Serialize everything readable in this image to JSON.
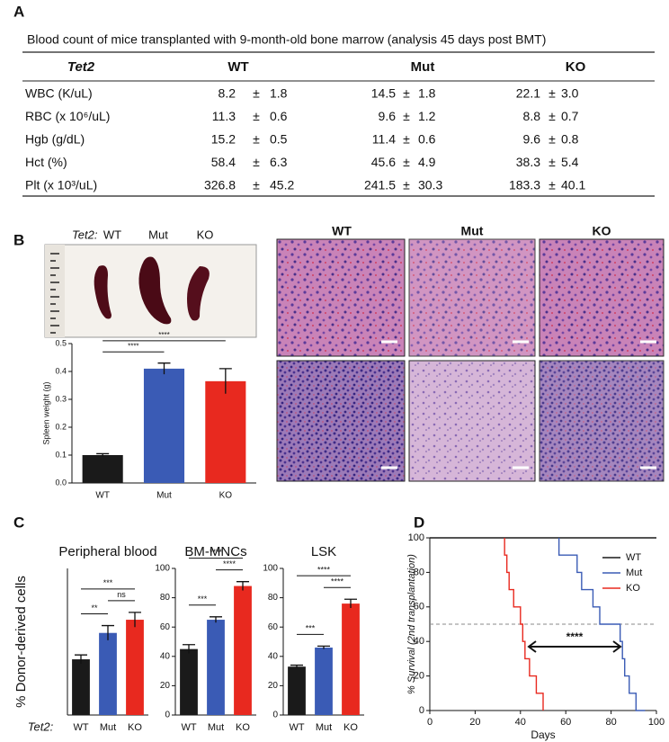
{
  "panel_labels": [
    "A",
    "B",
    "C",
    "D"
  ],
  "table": {
    "title": "Blood count of mice transplanted with 9-month-old bone marrow (analysis 45 days post BMT)",
    "header": [
      "Tet2",
      "WT",
      "Mut",
      "KO"
    ],
    "plus_minus": "±",
    "rows": [
      [
        "WBC (K/uL)",
        "8.2",
        "1.8",
        "14.5",
        "1.8",
        "22.1",
        "3.0"
      ],
      [
        "RBC (x 10⁶/uL)",
        "11.3",
        "0.6",
        "9.6",
        "1.2",
        "8.8",
        "0.7"
      ],
      [
        "Hgb (g/dL)",
        "15.2",
        "0.5",
        "11.4",
        "0.6",
        "9.6",
        "0.8"
      ],
      [
        "Hct (%)",
        "58.4",
        "6.3",
        "45.6",
        "4.9",
        "38.3",
        "5.4"
      ],
      [
        "Plt (x 10³/uL)",
        "326.8",
        "45.2",
        "241.5",
        "30.3",
        "183.3",
        "40.1"
      ]
    ]
  },
  "spleen_photo": {
    "genotype_label": "Tet2:",
    "labels": [
      "WT",
      "Mut",
      "KO"
    ]
  },
  "histology": {
    "labels": [
      "WT",
      "Mut",
      "KO"
    ]
  },
  "chart_data": [
    {
      "type": "bar",
      "ylabel": "Spleen weight (g)",
      "categories": [
        "WT",
        "Mut",
        "KO"
      ],
      "values": [
        0.1,
        0.41,
        0.365
      ],
      "errors": [
        0.005,
        0.02,
        0.045
      ],
      "colors": [
        "#1a1a1a",
        "#3a5bb5",
        "#e8291f"
      ],
      "ylim": [
        0,
        0.5
      ],
      "yticks": [
        {
          "value": 0,
          "label": "0.0"
        },
        0.1,
        0.2,
        0.3,
        0.4,
        0.5
      ],
      "annotations": [
        {
          "text": "****",
          "pair": [
            "WT",
            "Mut"
          ]
        },
        {
          "text": "****",
          "pair": [
            "WT",
            "KO"
          ]
        }
      ]
    },
    {
      "type": "bar",
      "title": "Peripheral blood",
      "ylabel": "% Donor-derived cells",
      "category_prefix": "Tet2:",
      "categories": [
        "WT",
        "Mut",
        "KO"
      ],
      "values": [
        38,
        56,
        65
      ],
      "errors": [
        3,
        5,
        5
      ],
      "colors": [
        "#1a1a1a",
        "#3a5bb5",
        "#e8291f"
      ],
      "ylim": [
        0,
        100
      ],
      "annotations": [
        {
          "text": "**",
          "pair": [
            "WT",
            "Mut"
          ]
        },
        {
          "text": "ns",
          "pair": [
            "Mut",
            "KO"
          ]
        },
        {
          "text": "***",
          "pair": [
            "WT",
            "KO"
          ]
        }
      ]
    },
    {
      "type": "bar",
      "title": "BM-MNCs",
      "categories": [
        "WT",
        "Mut",
        "KO"
      ],
      "values": [
        45,
        65,
        88
      ],
      "errors": [
        3,
        2,
        3
      ],
      "colors": [
        "#1a1a1a",
        "#3a5bb5",
        "#e8291f"
      ],
      "ylim": [
        0,
        100
      ],
      "yticks": [
        0,
        20,
        40,
        60,
        80,
        100
      ],
      "annotations": [
        {
          "text": "***",
          "pair": [
            "WT",
            "Mut"
          ]
        },
        {
          "text": "****",
          "pair": [
            "Mut",
            "KO"
          ]
        },
        {
          "text": "****",
          "pair": [
            "WT",
            "KO"
          ]
        }
      ]
    },
    {
      "type": "bar",
      "title": "LSK",
      "categories": [
        "WT",
        "Mut",
        "KO"
      ],
      "values": [
        33,
        46,
        76
      ],
      "errors": [
        1,
        1,
        3
      ],
      "colors": [
        "#1a1a1a",
        "#3a5bb5",
        "#e8291f"
      ],
      "ylim": [
        0,
        100
      ],
      "yticks": [
        0,
        20,
        40,
        60,
        80,
        100
      ],
      "annotations": [
        {
          "text": "***",
          "pair": [
            "WT",
            "Mut"
          ]
        },
        {
          "text": "****",
          "pair": [
            "Mut",
            "KO"
          ]
        },
        {
          "text": "****",
          "pair": [
            "WT",
            "KO"
          ]
        }
      ]
    },
    {
      "type": "line",
      "xlabel": "Days",
      "ylabel": "% Survival (2nd transplantation)",
      "xlim": [
        0,
        100
      ],
      "xticks": [
        0,
        20,
        40,
        60,
        80,
        100
      ],
      "ylim": [
        0,
        100
      ],
      "yticks": [
        0,
        20,
        40,
        60,
        80,
        100
      ],
      "reference_line": 50,
      "legend": "upper right",
      "annotations": [
        {
          "text": "****"
        }
      ],
      "series": [
        {
          "name": "WT",
          "color": "#1a1a1a",
          "x": [
            0,
            100
          ],
          "values": [
            100,
            100
          ]
        },
        {
          "name": "Mut",
          "color": "#3a5bb5",
          "x": [
            57,
            57,
            65,
            65,
            67,
            67,
            72,
            72,
            75,
            75,
            84,
            84,
            85,
            85,
            86,
            86,
            88,
            88,
            91,
            91,
            95,
            95
          ],
          "values": [
            100,
            90,
            90,
            80,
            80,
            70,
            70,
            60,
            60,
            50,
            50,
            40,
            40,
            30,
            30,
            20,
            20,
            10,
            10,
            0,
            0,
            0
          ]
        },
        {
          "name": "KO",
          "color": "#e8291f",
          "x": [
            33,
            33,
            34,
            34,
            35,
            35,
            37,
            37,
            40,
            40,
            41,
            41,
            42,
            42,
            44,
            44,
            47,
            47,
            50,
            50
          ],
          "values": [
            100,
            90,
            90,
            80,
            80,
            70,
            70,
            60,
            60,
            50,
            50,
            40,
            40,
            30,
            30,
            20,
            20,
            10,
            10,
            0
          ]
        }
      ]
    }
  ]
}
